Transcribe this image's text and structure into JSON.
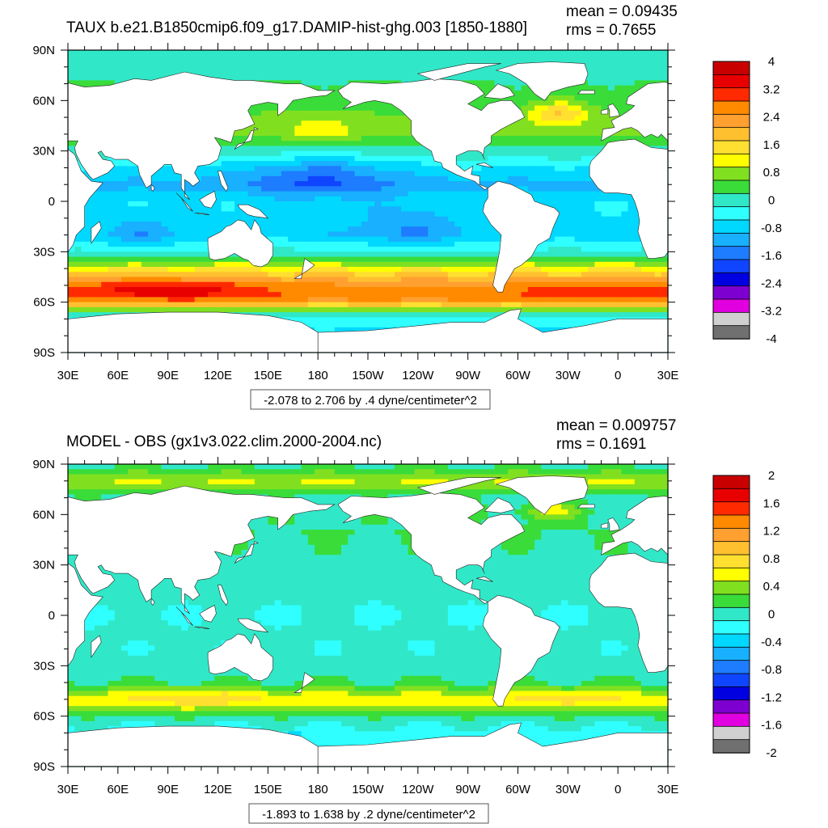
{
  "chart_data": [
    {
      "type": "heatmap",
      "title": "TAUX b.e21.B1850cmip6.f09_g17.DAMIP-hist-ghg.003 [1850-1880]",
      "stats": {
        "mean": "mean = 0.09435",
        "rms": "rms = 0.7655"
      },
      "contour_info": "-2.078 to 2.706 by .4 dyne/centimeter^2",
      "x_ticks": [
        "30E",
        "60E",
        "90E",
        "120E",
        "150E",
        "180",
        "150W",
        "120W",
        "90W",
        "60W",
        "30W",
        "0",
        "30E"
      ],
      "y_ticks": [
        "90N",
        "60N",
        "30N",
        "0",
        "30S",
        "60S",
        "90S"
      ],
      "xlim": [
        30,
        390
      ],
      "ylim": [
        -90,
        90
      ],
      "colorbar": {
        "labels": [
          "4",
          "3.2",
          "2.4",
          "1.6",
          "0.8",
          "0",
          "-0.8",
          "-1.6",
          "-2.4",
          "-3.2",
          "-4"
        ],
        "colors": [
          "#c80000",
          "#e80000",
          "#ff2a00",
          "#ff8a00",
          "#ffa030",
          "#ffc030",
          "#ffe030",
          "#ffff00",
          "#80e020",
          "#3adc3a",
          "#30e8c8",
          "#30ffff",
          "#00d8ff",
          "#18b0ff",
          "#1e7cff",
          "#0f45ff",
          "#0000e0",
          "#7e00d0",
          "#e000e0",
          "#d0d0d0",
          "#707070"
        ]
      },
      "field": {
        "zonal_means": [
          [
            88,
            -0.1
          ],
          [
            70,
            0.2
          ],
          [
            60,
            0.4
          ],
          [
            50,
            0.6
          ],
          [
            40,
            0.6
          ],
          [
            30,
            0.1
          ],
          [
            20,
            -0.6
          ],
          [
            10,
            -1.1
          ],
          [
            0,
            -0.6
          ],
          [
            -10,
            -0.6
          ],
          [
            -20,
            -0.8
          ],
          [
            -30,
            -0.1
          ],
          [
            -38,
            1.0
          ],
          [
            -44,
            1.8
          ],
          [
            -50,
            2.5
          ],
          [
            -54,
            2.8
          ],
          [
            -58,
            2.6
          ],
          [
            -62,
            1.6
          ],
          [
            -66,
            0.3
          ],
          [
            -70,
            -0.3
          ],
          [
            -75,
            -0.6
          ]
        ],
        "anomalies": [
          [
            180,
            42,
            0.6,
            18,
            6
          ],
          [
            -35,
            52,
            1.2,
            12,
            5
          ],
          [
            180,
            15,
            -0.8,
            30,
            10
          ],
          [
            -125,
            -15,
            -0.6,
            25,
            10
          ],
          [
            75,
            -20,
            -0.5,
            15,
            8
          ],
          [
            70,
            -52,
            0.4,
            40,
            5
          ],
          [
            100,
            -52,
            0.5,
            30,
            5
          ],
          [
            -30,
            -55,
            0.4,
            20,
            5
          ]
        ]
      }
    },
    {
      "type": "heatmap",
      "title": "MODEL - OBS (gx1v3.022.clim.2000-2004.nc)",
      "stats": {
        "mean": "mean = 0.009757",
        "rms": "rms = 0.1691"
      },
      "contour_info": "-1.893 to 1.638 by .2 dyne/centimeter^2",
      "x_ticks": [
        "30E",
        "60E",
        "90E",
        "120E",
        "150E",
        "180",
        "150W",
        "120W",
        "90W",
        "60W",
        "30W",
        "0",
        "30E"
      ],
      "y_ticks": [
        "90N",
        "60N",
        "30N",
        "0",
        "30S",
        "60S",
        "90S"
      ],
      "xlim": [
        30,
        390
      ],
      "ylim": [
        -90,
        90
      ],
      "colorbar": {
        "labels": [
          "2",
          "1.6",
          "1.2",
          "0.8",
          "0.4",
          "0",
          "-0.4",
          "-0.8",
          "-1.2",
          "-1.6",
          "-2"
        ],
        "colors": [
          "#c80000",
          "#e80000",
          "#ff2a00",
          "#ff8a00",
          "#ffa030",
          "#ffc030",
          "#ffe030",
          "#ffff00",
          "#80e020",
          "#3adc3a",
          "#30e8c8",
          "#30ffff",
          "#00d8ff",
          "#18b0ff",
          "#1e7cff",
          "#0f45ff",
          "#0000e0",
          "#7e00d0",
          "#e000e0",
          "#d0d0d0",
          "#707070"
        ]
      },
      "field": {
        "zonal_means": [
          [
            88,
            0.1
          ],
          [
            80,
            0.5
          ],
          [
            70,
            0.05
          ],
          [
            60,
            0.05
          ],
          [
            50,
            0.1
          ],
          [
            40,
            0.05
          ],
          [
            30,
            0.05
          ],
          [
            20,
            0.0
          ],
          [
            10,
            -0.05
          ],
          [
            0,
            -0.1
          ],
          [
            -10,
            -0.05
          ],
          [
            -20,
            -0.05
          ],
          [
            -30,
            0.0
          ],
          [
            -40,
            0.1
          ],
          [
            -46,
            0.45
          ],
          [
            -50,
            0.6
          ],
          [
            -54,
            0.45
          ],
          [
            -58,
            0.2
          ],
          [
            -62,
            0.0
          ],
          [
            -66,
            -0.1
          ],
          [
            -70,
            -0.15
          ],
          [
            -75,
            -0.2
          ]
        ],
        "anomalies": [
          [
            -40,
            62,
            0.5,
            12,
            4
          ],
          [
            110,
            -50,
            0.25,
            25,
            4
          ],
          [
            -30,
            -50,
            0.2,
            20,
            4
          ],
          [
            165,
            -74,
            -1.2,
            3,
            2
          ]
        ]
      }
    }
  ]
}
